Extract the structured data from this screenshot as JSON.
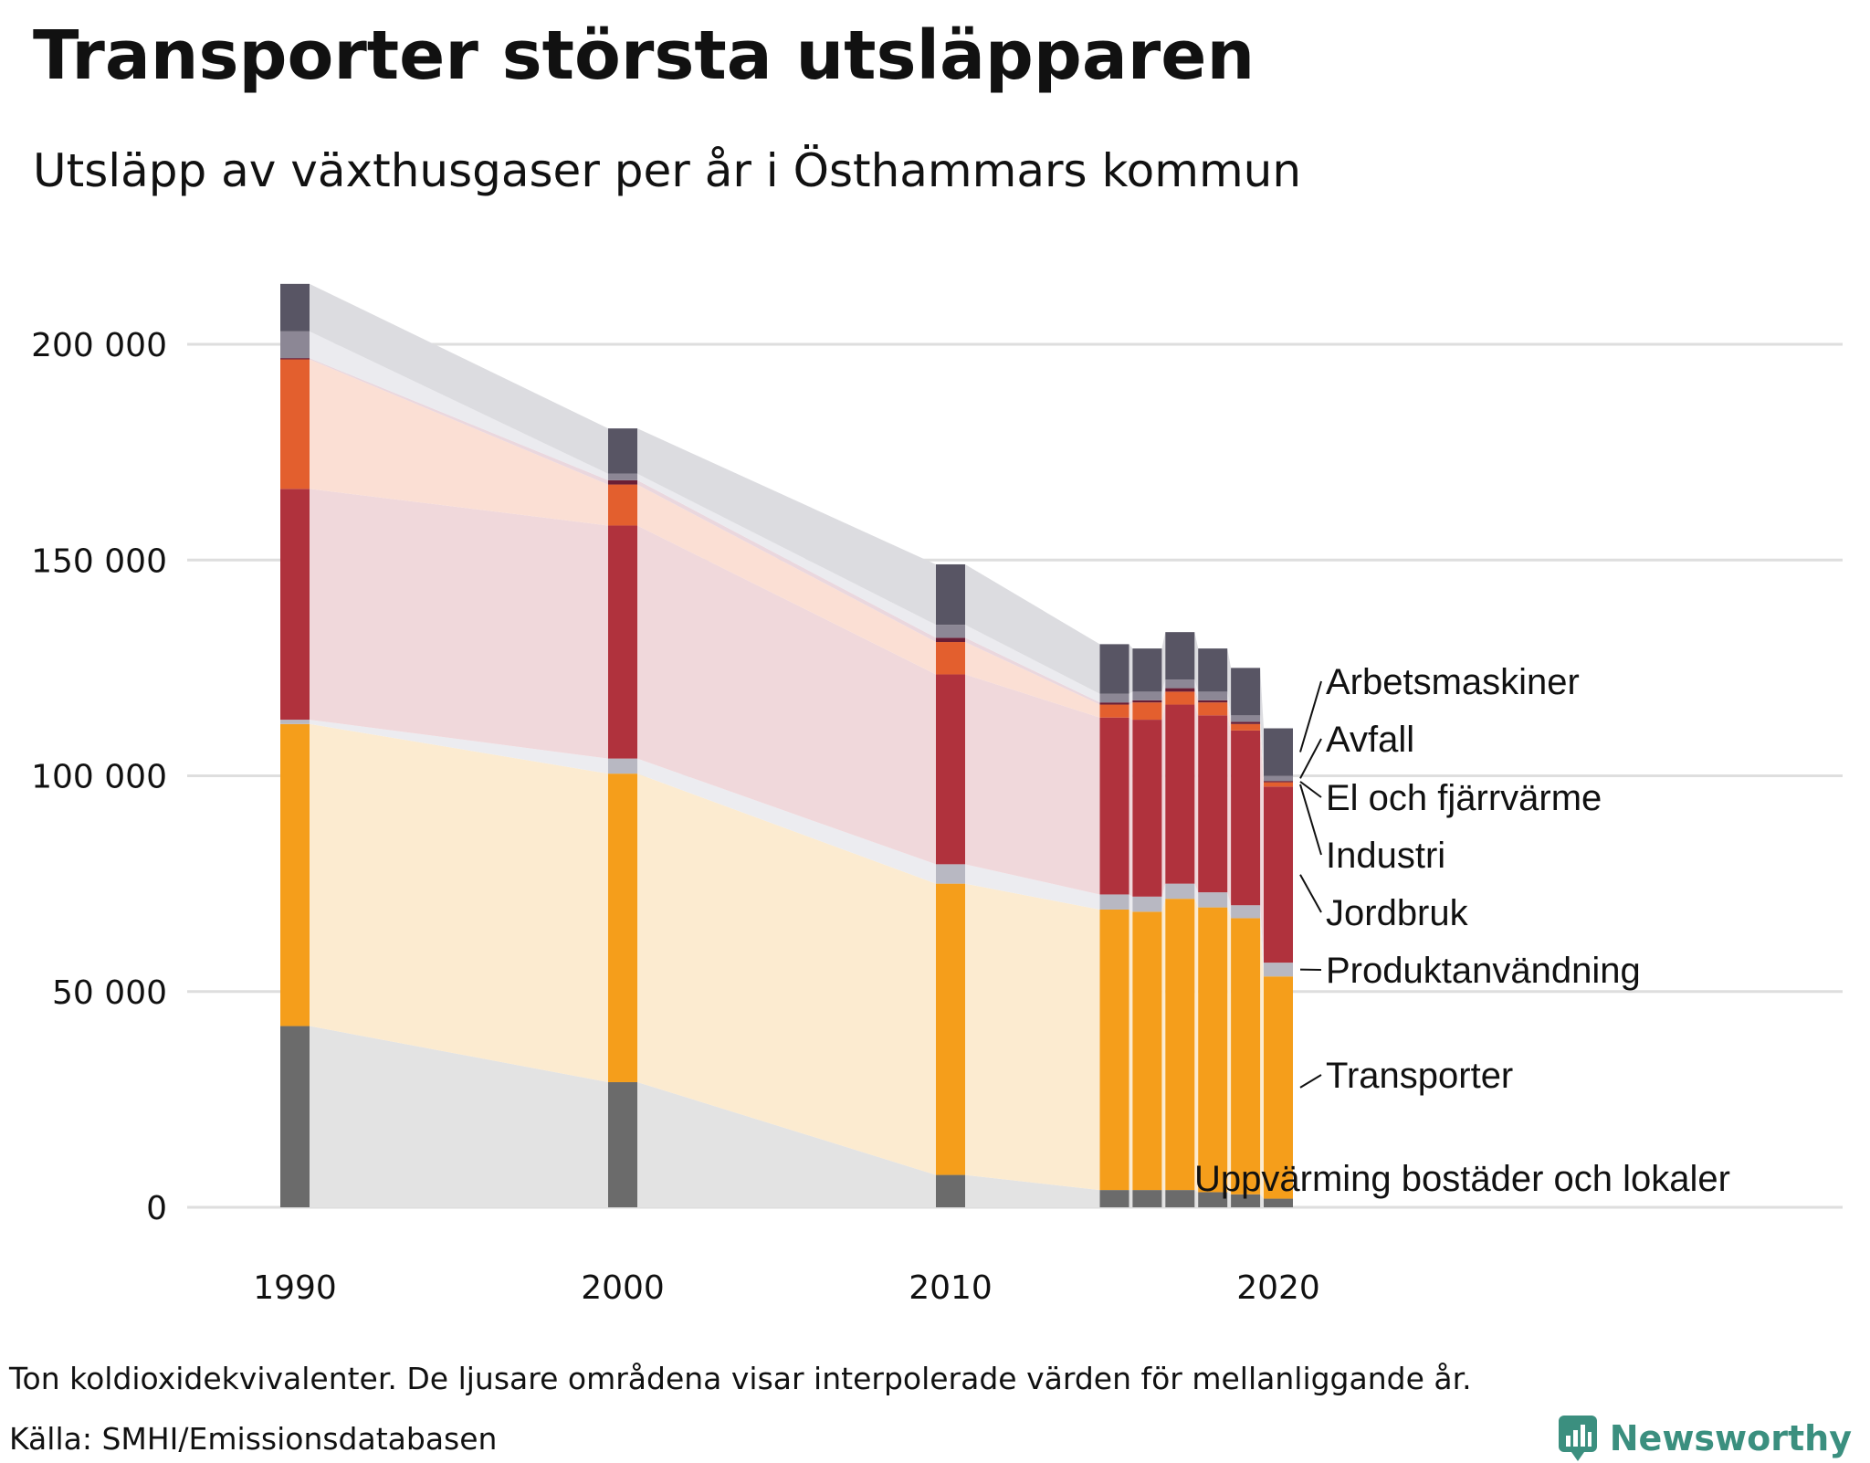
{
  "chart_data": {
    "type": "bar",
    "stacked": true,
    "title": "Transporter största utsläpparen",
    "subtitle": "Utsläpp av växthusgaser per år i Östhammars kommun",
    "xlabel": "",
    "ylabel": "",
    "ylim": [
      0,
      215000
    ],
    "y_ticks": [
      0,
      50000,
      100000,
      150000,
      200000
    ],
    "y_tick_labels": [
      "0",
      "50 000",
      "100 000",
      "150 000",
      "200 000"
    ],
    "x_ticks": [
      1990,
      2000,
      2010,
      2020
    ],
    "x_tick_labels": [
      "1990",
      "2000",
      "2010",
      "2020"
    ],
    "categories": [
      1990,
      2000,
      2010,
      2015,
      2016,
      2017,
      2018,
      2019,
      2020
    ],
    "series": [
      {
        "name": "Uppvärming bostäder och lokaler",
        "color": "#6b6b6b",
        "fill_color": "#e3e3e3",
        "values": [
          42000,
          29000,
          7500,
          4000,
          4000,
          4000,
          3500,
          3000,
          2000
        ]
      },
      {
        "name": "Transporter",
        "color": "#f59e1b",
        "fill_color": "#fcebd0",
        "values": [
          70000,
          71500,
          67500,
          65000,
          64500,
          67500,
          66000,
          64000,
          51500
        ]
      },
      {
        "name": "Produktanvändning",
        "color": "#b8b8c2",
        "fill_color": "#ececf0",
        "values": [
          1000,
          3500,
          4500,
          3500,
          3500,
          3500,
          3500,
          3000,
          3200
        ]
      },
      {
        "name": "Jordbruk",
        "color": "#b0323d",
        "fill_color": "#f0d8db",
        "values": [
          53500,
          54000,
          44000,
          41000,
          41000,
          41500,
          41000,
          40500,
          40800
        ]
      },
      {
        "name": "Industri",
        "color": "#e35f2e",
        "fill_color": "#fbdfd4",
        "values": [
          30000,
          9500,
          7500,
          3000,
          4000,
          3000,
          3000,
          1500,
          1000
        ]
      },
      {
        "name": "El och fjärrvärme",
        "color": "#6a1e35",
        "fill_color": "#ead7de",
        "values": [
          300,
          1000,
          1000,
          500,
          500,
          800,
          500,
          500,
          300
        ]
      },
      {
        "name": "Avfall",
        "color": "#8c8795",
        "fill_color": "#ebebef",
        "values": [
          6200,
          1500,
          3000,
          2000,
          2000,
          2000,
          2000,
          1500,
          1200
        ]
      },
      {
        "name": "Arbetsmaskiner",
        "color": "#585564",
        "fill_color": "#dcdce0",
        "values": [
          11000,
          10500,
          14000,
          11500,
          10000,
          11000,
          10000,
          11000,
          11000
        ]
      }
    ],
    "legend": "direct labels at right of last bar",
    "grid": "horizontal"
  },
  "footnote": "Ton koldioxidekvivalenter. De ljusare områdena visar interpolerade värden för mellanliggande år.",
  "source": "Källa: SMHI/Emissionsdatabasen",
  "brand": {
    "name": "Newsworthy",
    "color": "#3b8f7f"
  }
}
